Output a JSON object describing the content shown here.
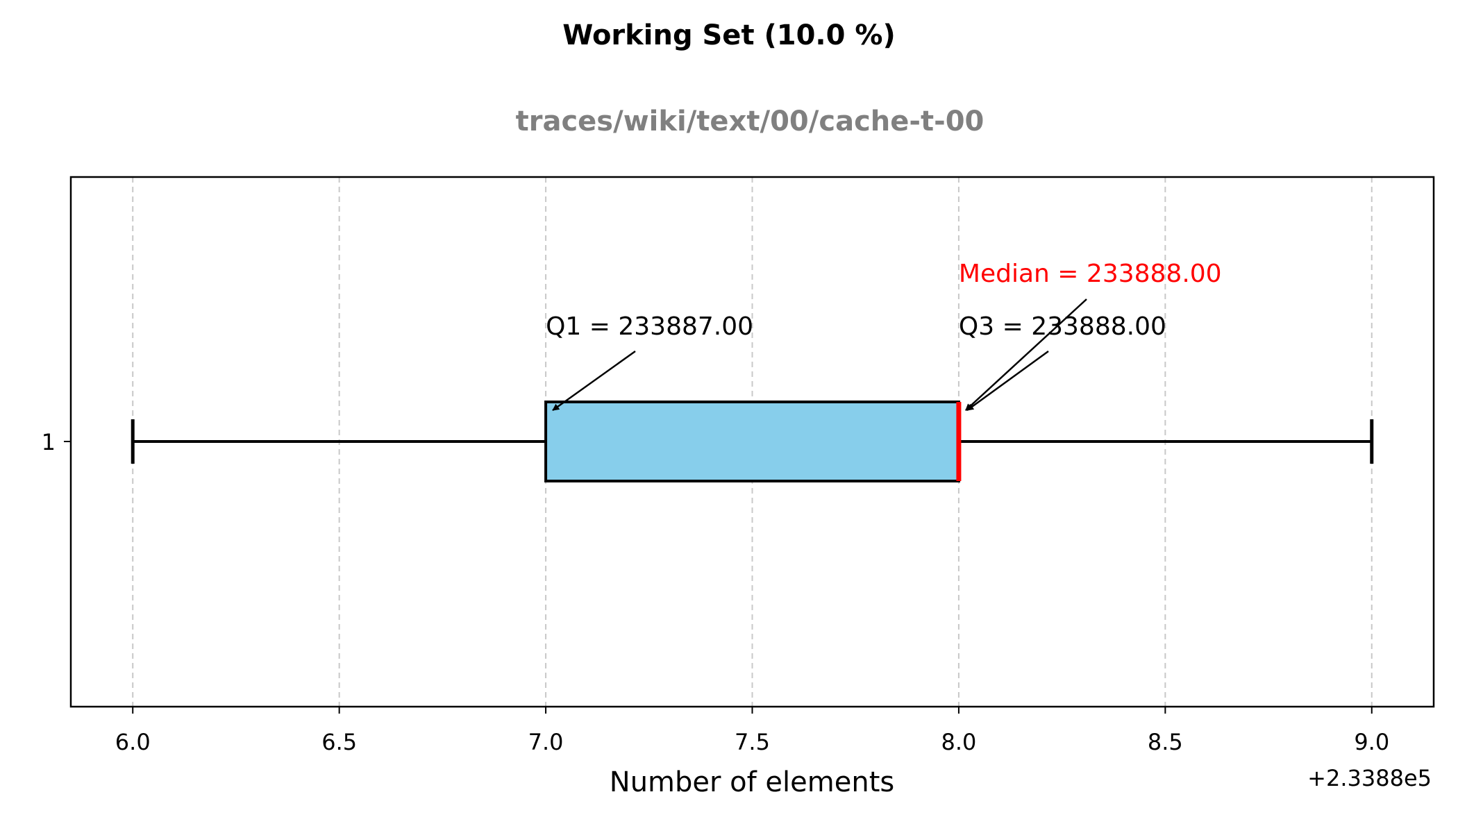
{
  "chart_data": {
    "type": "box",
    "title": "Working Set (10.0 %)",
    "subtitle": "traces/wiki/text/00/cache-t-00",
    "xlabel": "Number of elements",
    "ylabel": "",
    "x_offset_label": "+2.3388e5",
    "xlim": [
      5.85,
      9.15
    ],
    "x_ticks": [
      6.0,
      6.5,
      7.0,
      7.5,
      8.0,
      8.5,
      9.0
    ],
    "x_tick_labels": [
      "6.0",
      "6.5",
      "7.0",
      "7.5",
      "8.0",
      "8.5",
      "9.0"
    ],
    "y_ticks": [
      1
    ],
    "y_tick_labels": [
      "1"
    ],
    "grid": "x-dashed",
    "box": {
      "whisker_low": 6.0,
      "q1": 7.0,
      "median": 8.0,
      "q3": 8.0,
      "whisker_high": 9.0
    },
    "annotations": [
      {
        "name": "q1",
        "text": "Q1 = 233887.00",
        "target": 7.0
      },
      {
        "name": "median",
        "text": "Median = 233888.00",
        "target": 8.0
      },
      {
        "name": "q3",
        "text": "Q3 = 233888.00",
        "target": 8.0
      }
    ],
    "colors": {
      "box_fill": "#87ceeb",
      "median": "#ff0000",
      "median_label": "#ff0000",
      "subtitle": "#808080",
      "grid": "#c8c8c8",
      "axis": "#000000"
    }
  }
}
